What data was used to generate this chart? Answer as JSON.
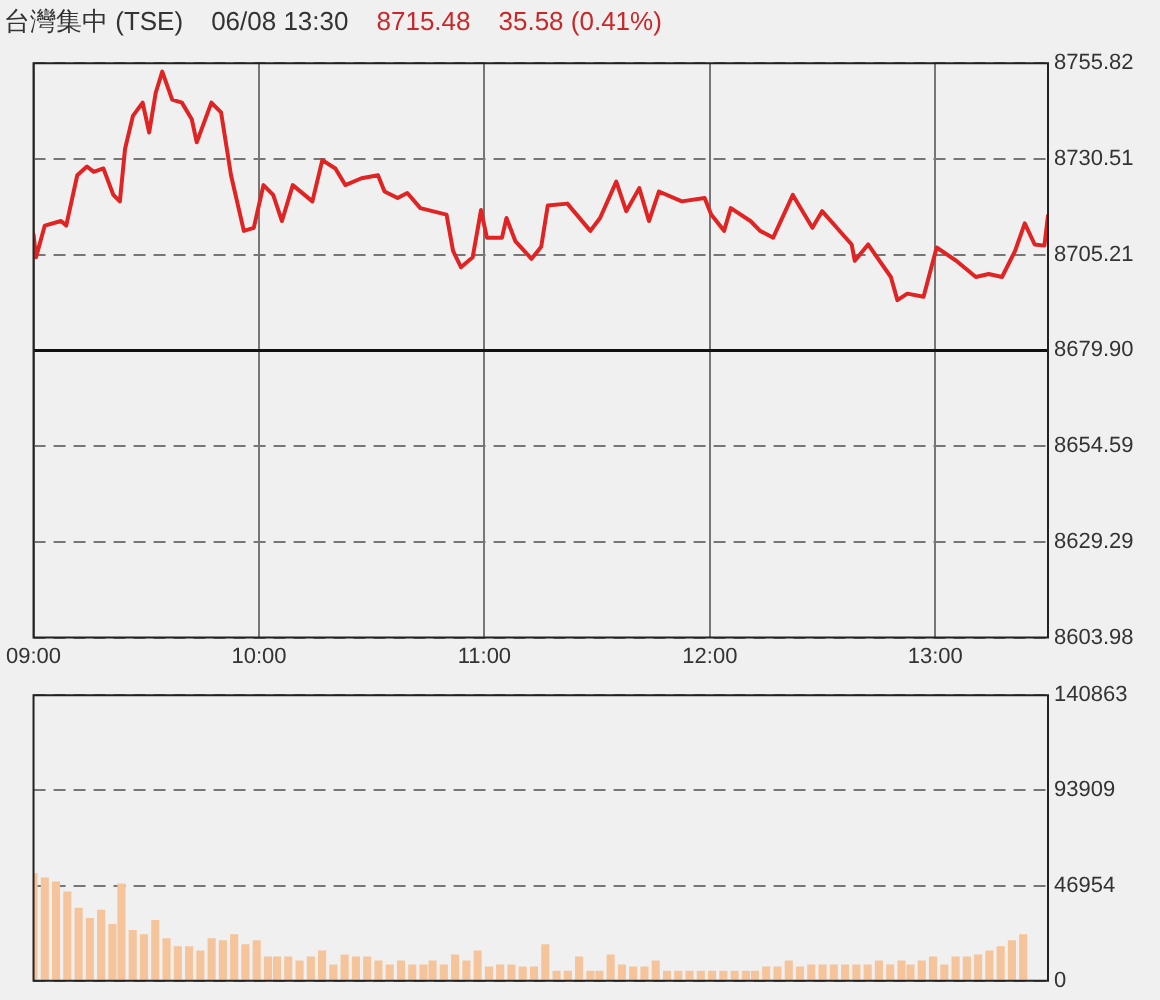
{
  "chart_data": [
    {
      "type": "line",
      "title": "台灣集中 (TSE)",
      "subtitle": "06/08 13:30",
      "annotations": [
        "8715.48",
        "35.58 (0.41%)"
      ],
      "color": "#e02424",
      "marker": "none",
      "line_style": "solid",
      "grid": true,
      "x": [
        9.0,
        9.011,
        9.05,
        9.122,
        9.145,
        9.194,
        9.237,
        9.267,
        9.31,
        9.354,
        9.383,
        9.406,
        9.441,
        9.484,
        9.513,
        9.542,
        9.571,
        9.615,
        9.658,
        9.702,
        9.724,
        9.789,
        9.832,
        9.876,
        9.933,
        9.977,
        10.02,
        10.063,
        10.102,
        10.15,
        10.237,
        10.281,
        10.339,
        10.383,
        10.455,
        10.528,
        10.557,
        10.615,
        10.658,
        10.716,
        10.832,
        10.861,
        10.896,
        10.948,
        10.985,
        11.011,
        11.078,
        11.098,
        11.137,
        11.209,
        11.252,
        11.281,
        11.368,
        11.47,
        11.513,
        11.585,
        11.629,
        11.687,
        11.73,
        11.774,
        11.876,
        11.977,
        12.006,
        12.063,
        12.093,
        12.18,
        12.223,
        12.281,
        12.368,
        12.455,
        12.498,
        12.629,
        12.643,
        12.702,
        12.803,
        12.832,
        12.876,
        12.948,
        13.006,
        13.093,
        13.18,
        13.237,
        13.296,
        13.354,
        13.397,
        13.441,
        13.484,
        13.5
      ],
      "values": [
        8710.6,
        8704.5,
        8712.9,
        8714.1,
        8712.9,
        8726.2,
        8728.5,
        8727.1,
        8728.0,
        8721.0,
        8719.3,
        8733.2,
        8741.9,
        8745.4,
        8737.5,
        8748.0,
        8753.6,
        8746.2,
        8745.4,
        8741.0,
        8734.9,
        8745.4,
        8742.8,
        8726.2,
        8711.5,
        8712.3,
        8723.6,
        8721.0,
        8714.1,
        8723.6,
        8719.3,
        8730.2,
        8728.0,
        8723.6,
        8725.4,
        8726.2,
        8721.9,
        8720.2,
        8721.5,
        8717.5,
        8715.8,
        8706.2,
        8701.9,
        8704.5,
        8717.0,
        8709.7,
        8709.7,
        8714.9,
        8708.8,
        8704.1,
        8707.3,
        8718.2,
        8718.7,
        8711.5,
        8714.9,
        8724.5,
        8716.7,
        8722.8,
        8714.1,
        8721.9,
        8719.3,
        8720.2,
        8715.8,
        8711.5,
        8717.5,
        8714.1,
        8711.5,
        8709.7,
        8721.0,
        8712.3,
        8716.7,
        8707.9,
        8703.6,
        8707.9,
        8699.3,
        8693.2,
        8694.9,
        8694.1,
        8707.1,
        8703.6,
        8699.3,
        8700.1,
        8699.3,
        8706.2,
        8713.5,
        8707.9,
        8707.6,
        8715.5
      ],
      "xlim": [
        9,
        13.5
      ],
      "xticks": [
        {
          "value": 9,
          "label": "09:00"
        },
        {
          "value": 10,
          "label": "10:00"
        },
        {
          "value": 11,
          "label": "11:00"
        },
        {
          "value": 12,
          "label": "12:00"
        },
        {
          "value": 13,
          "label": "13:00"
        }
      ],
      "ylim": [
        8603.98,
        8755.82
      ],
      "yticks": [
        {
          "value": 8603.98,
          "label": "8603.98"
        },
        {
          "value": 8629.29,
          "label": "8629.29"
        },
        {
          "value": 8654.59,
          "label": "8654.59"
        },
        {
          "value": 8679.9,
          "label": "8679.90"
        },
        {
          "value": 8705.21,
          "label": "8705.21"
        },
        {
          "value": 8730.51,
          "label": "8730.51"
        },
        {
          "value": 8755.82,
          "label": "8755.82"
        }
      ],
      "ref_lines": [
        {
          "axis": "y",
          "value": 8679.9,
          "color": "#111111"
        }
      ]
    },
    {
      "type": "bar",
      "color": "#f6c49a",
      "grid": "y",
      "tick_labels": "y",
      "xlim": [
        9,
        13.5
      ],
      "ylim": [
        0,
        140863
      ],
      "yticks": [
        0,
        46954,
        93909,
        140863
      ],
      "x": [
        9.0,
        9.05,
        9.1,
        9.15,
        9.2,
        9.25,
        9.3,
        9.35,
        9.39,
        9.44,
        9.49,
        9.54,
        9.59,
        9.64,
        9.69,
        9.74,
        9.79,
        9.84,
        9.89,
        9.94,
        9.99,
        10.04,
        10.08,
        10.13,
        10.18,
        10.23,
        10.28,
        10.33,
        10.38,
        10.43,
        10.48,
        10.53,
        10.58,
        10.63,
        10.68,
        10.73,
        10.77,
        10.82,
        10.87,
        10.92,
        10.97,
        11.02,
        11.07,
        11.12,
        11.17,
        11.22,
        11.27,
        11.32,
        11.37,
        11.42,
        11.47,
        11.51,
        11.56,
        11.61,
        11.66,
        11.71,
        11.76,
        11.81,
        11.86,
        11.91,
        11.96,
        12.01,
        12.06,
        12.11,
        12.16,
        12.2,
        12.25,
        12.3,
        12.35,
        12.4,
        12.45,
        12.5,
        12.55,
        12.6,
        12.65,
        12.7,
        12.75,
        12.8,
        12.85,
        12.89,
        12.94,
        12.99,
        13.04,
        13.09,
        13.14,
        13.19,
        13.24,
        13.29,
        13.34,
        13.39
      ],
      "values": [
        53000,
        51000,
        49000,
        44000,
        36000,
        31000,
        35000,
        28000,
        48000,
        25000,
        23000,
        30000,
        21000,
        17000,
        17000,
        15000,
        21000,
        20000,
        23000,
        18000,
        20000,
        12000,
        12000,
        12000,
        10000,
        12000,
        15000,
        8000,
        13000,
        12000,
        12000,
        10000,
        8000,
        10000,
        8000,
        8000,
        10000,
        8000,
        13000,
        10000,
        15000,
        7000,
        8000,
        8000,
        7000,
        7000,
        18000,
        5000,
        5000,
        12000,
        5000,
        5000,
        13000,
        8000,
        7000,
        7000,
        10000,
        5000,
        5000,
        5000,
        5000,
        5000,
        5000,
        5000,
        5000,
        5000,
        7000,
        7000,
        10000,
        7000,
        8000,
        8000,
        8000,
        8000,
        8000,
        8000,
        10000,
        8000,
        10000,
        8000,
        10000,
        12000,
        8000,
        12000,
        12000,
        13000,
        15000,
        17000,
        20000,
        23000
      ]
    }
  ]
}
